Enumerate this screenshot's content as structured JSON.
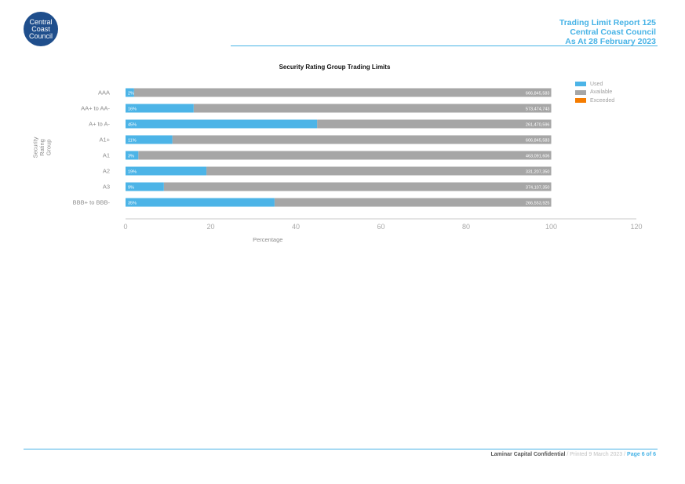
{
  "logo": {
    "lines": [
      "Central",
      "Coast",
      "Council"
    ]
  },
  "header": {
    "line1": "Trading Limit Report 125",
    "line2": "Central Coast Council",
    "line3": "As At 28 February 2023"
  },
  "colors": {
    "accent": "#47b3e6",
    "used": "#4cb4e7",
    "available": "#a6a6a6",
    "exceeded": "#f57c00",
    "logo": "#1f4e8c"
  },
  "chart_data": {
    "type": "bar",
    "orientation": "horizontal",
    "stacked": true,
    "title": "Security Rating Group Trading Limits",
    "xlabel": "Percentage",
    "ylabel": "Security Rating Group",
    "xlim": [
      0,
      120
    ],
    "xticks": [
      0,
      20,
      40,
      60,
      80,
      100,
      120
    ],
    "categories": [
      "AAA",
      "AA+ to AA-",
      "A+ to A-",
      "A1+",
      "A1",
      "A2",
      "A3",
      "BBB+ to BBB-"
    ],
    "series": [
      {
        "name": "Used",
        "values": [
          2,
          16,
          45,
          11,
          3,
          19,
          9,
          35
        ],
        "labels": [
          "2%",
          "16%",
          "45%",
          "11%",
          "3%",
          "19%",
          "9%",
          "35%"
        ]
      },
      {
        "name": "Available",
        "values": [
          98,
          84,
          55,
          89,
          97,
          81,
          91,
          65
        ],
        "labels": [
          "666,845,583",
          "573,474,743",
          "261,470,596",
          "606,845,583",
          "463,091,606",
          "331,207,350",
          "374,107,350",
          "266,553,925"
        ]
      },
      {
        "name": "Exceeded",
        "values": [
          0,
          0,
          0,
          0,
          0,
          0,
          0,
          0
        ]
      }
    ],
    "legend_position": "top-right",
    "grid": false
  },
  "footer": {
    "confidential": "Laminar Capital Confidential",
    "printed": " / Printed 9 March 2023 / ",
    "page": "Page 6 of 6"
  }
}
